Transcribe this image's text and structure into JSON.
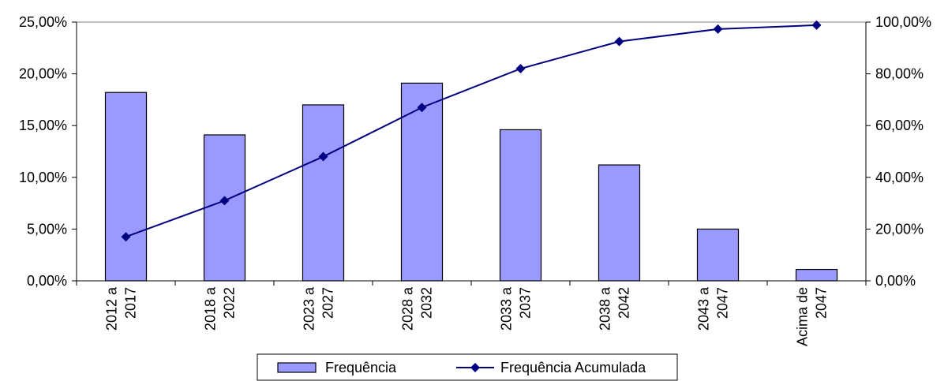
{
  "chart_data": {
    "type": "bar+line",
    "categories": [
      [
        "2012 a",
        "2017"
      ],
      [
        "2018 a",
        "2022"
      ],
      [
        "2023 a",
        "2027"
      ],
      [
        "2028 a",
        "2032"
      ],
      [
        "2033 a",
        "2037"
      ],
      [
        "2038 a",
        "2042"
      ],
      [
        "2043 a",
        "2047"
      ],
      [
        "Acima de",
        "2047"
      ]
    ],
    "series": [
      {
        "name": "Frequência",
        "type": "bar",
        "axis": "left",
        "values": [
          18.2,
          14.1,
          17.0,
          19.1,
          14.6,
          11.2,
          5.0,
          1.1
        ],
        "color": "#9999ff"
      },
      {
        "name": "Frequência Acumulada",
        "type": "line",
        "axis": "right",
        "values": [
          17.0,
          31.0,
          48.0,
          67.0,
          82.0,
          92.5,
          97.3,
          98.8
        ],
        "color": "#000080"
      }
    ],
    "y_left": {
      "min": 0,
      "max": 25,
      "ticks": [
        "0,00%",
        "5,00%",
        "10,00%",
        "15,00%",
        "20,00%",
        "25,00%"
      ]
    },
    "y_right": {
      "min": 0,
      "max": 100,
      "ticks": [
        "0,00%",
        "20,00%",
        "40,00%",
        "60,00%",
        "80,00%",
        "100,00%"
      ]
    },
    "legend_position": "bottom",
    "grid": false
  }
}
